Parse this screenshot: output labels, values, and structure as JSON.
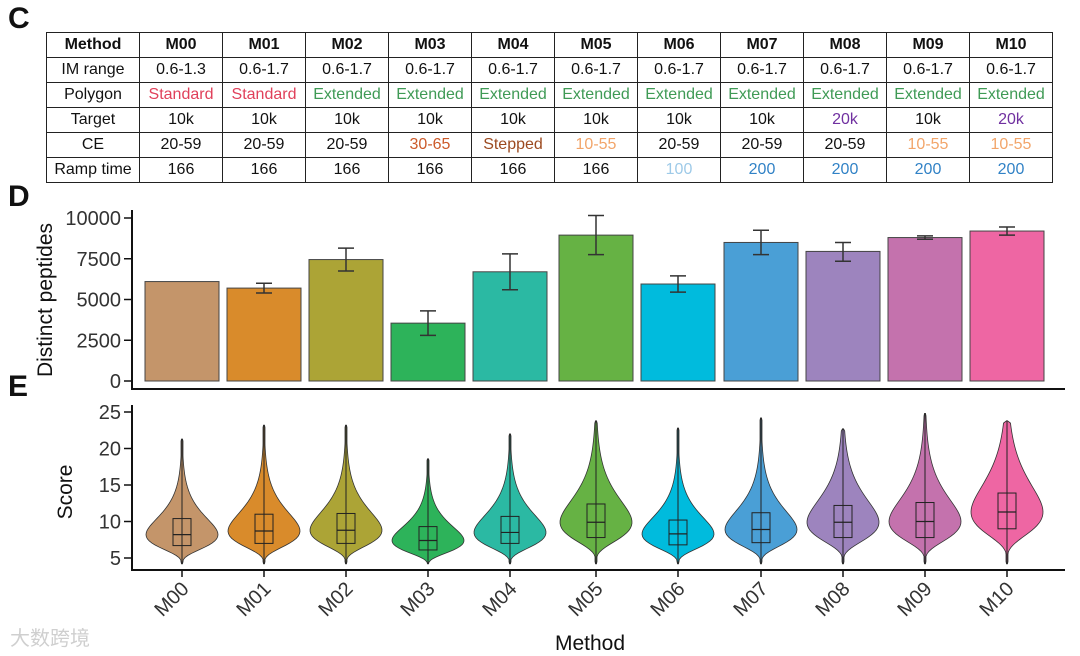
{
  "panels": {
    "table": "C",
    "bar": "D",
    "violin": "E"
  },
  "table": {
    "header": [
      "Method",
      "M00",
      "M01",
      "M02",
      "M03",
      "M04",
      "M05",
      "M06",
      "M07",
      "M08",
      "M09",
      "M10"
    ],
    "rows": [
      {
        "label": "IM range",
        "cells": [
          {
            "t": "0.6-1.3"
          },
          {
            "t": "0.6-1.7"
          },
          {
            "t": "0.6-1.7"
          },
          {
            "t": "0.6-1.7"
          },
          {
            "t": "0.6-1.7"
          },
          {
            "t": "0.6-1.7"
          },
          {
            "t": "0.6-1.7"
          },
          {
            "t": "0.6-1.7"
          },
          {
            "t": "0.6-1.7"
          },
          {
            "t": "0.6-1.7"
          },
          {
            "t": "0.6-1.7"
          }
        ]
      },
      {
        "label": "Polygon",
        "cells": [
          {
            "t": "Standard",
            "c": "#e0405a"
          },
          {
            "t": "Standard",
            "c": "#e0405a"
          },
          {
            "t": "Extended",
            "c": "#3f9a55"
          },
          {
            "t": "Extended",
            "c": "#3f9a55"
          },
          {
            "t": "Extended",
            "c": "#3f9a55"
          },
          {
            "t": "Extended",
            "c": "#3f9a55"
          },
          {
            "t": "Extended",
            "c": "#3f9a55"
          },
          {
            "t": "Extended",
            "c": "#3f9a55"
          },
          {
            "t": "Extended",
            "c": "#3f9a55"
          },
          {
            "t": "Extended",
            "c": "#3f9a55"
          },
          {
            "t": "Extended",
            "c": "#3f9a55"
          }
        ]
      },
      {
        "label": "Target",
        "cells": [
          {
            "t": "10k"
          },
          {
            "t": "10k"
          },
          {
            "t": "10k"
          },
          {
            "t": "10k"
          },
          {
            "t": "10k"
          },
          {
            "t": "10k"
          },
          {
            "t": "10k"
          },
          {
            "t": "10k"
          },
          {
            "t": "20k",
            "c": "#7030a0"
          },
          {
            "t": "10k"
          },
          {
            "t": "20k",
            "c": "#7030a0"
          }
        ]
      },
      {
        "label": "CE",
        "cells": [
          {
            "t": "20-59"
          },
          {
            "t": "20-59"
          },
          {
            "t": "20-59"
          },
          {
            "t": "30-65",
            "c": "#cc5a2a"
          },
          {
            "t": "Stepped",
            "c": "#9c4a20"
          },
          {
            "t": "10-55",
            "c": "#f2a56a"
          },
          {
            "t": "20-59"
          },
          {
            "t": "20-59"
          },
          {
            "t": "20-59"
          },
          {
            "t": "10-55",
            "c": "#f2a56a"
          },
          {
            "t": "10-55",
            "c": "#f2a56a"
          }
        ]
      },
      {
        "label": "Ramp time",
        "cells": [
          {
            "t": "166"
          },
          {
            "t": "166"
          },
          {
            "t": "166"
          },
          {
            "t": "166"
          },
          {
            "t": "166"
          },
          {
            "t": "166"
          },
          {
            "t": "100",
            "c": "#9ecae8"
          },
          {
            "t": "200",
            "c": "#3182c6"
          },
          {
            "t": "200",
            "c": "#3182c6"
          },
          {
            "t": "200",
            "c": "#3182c6"
          },
          {
            "t": "200",
            "c": "#3182c6"
          }
        ]
      }
    ]
  },
  "chart_data": [
    {
      "type": "bar",
      "categories": [
        "M00",
        "M01",
        "M02",
        "M03",
        "M04",
        "M05",
        "M06",
        "M07",
        "M08",
        "M09",
        "M10"
      ],
      "values": [
        6100,
        5700,
        7450,
        3550,
        6700,
        8950,
        5950,
        8500,
        7950,
        8800,
        9200
      ],
      "error_low": [
        null,
        5400,
        6750,
        2800,
        5600,
        7750,
        5450,
        7750,
        7350,
        8700,
        8950
      ],
      "error_high": [
        null,
        6000,
        8150,
        4300,
        7800,
        10150,
        6450,
        9250,
        8500,
        8900,
        9450
      ],
      "colors": [
        "#c4956a",
        "#d98b2b",
        "#aca436",
        "#2db35a",
        "#2bb9a3",
        "#66b244",
        "#00bbdd",
        "#4a9fd6",
        "#9d84be",
        "#c472ad",
        "#ee66a3"
      ],
      "ylabel": "Distinct peptides",
      "yticks": [
        "0",
        "2500",
        "5000",
        "7500",
        "10000"
      ],
      "ylim": [
        0,
        10000
      ]
    },
    {
      "type": "violin",
      "categories": [
        "M00",
        "M01",
        "M02",
        "M03",
        "M04",
        "M05",
        "M06",
        "M07",
        "M08",
        "M09",
        "M10"
      ],
      "median": [
        8.2,
        8.7,
        8.8,
        7.4,
        8.5,
        9.9,
        8.3,
        8.9,
        9.9,
        10.0,
        11.3
      ],
      "q1": [
        6.7,
        7.0,
        7.0,
        6.1,
        7.0,
        7.8,
        6.8,
        7.1,
        7.8,
        7.8,
        9.0
      ],
      "q3": [
        10.4,
        11.0,
        11.1,
        9.3,
        10.7,
        12.4,
        10.2,
        11.2,
        12.2,
        12.6,
        13.9
      ],
      "min": [
        4.2,
        4.2,
        4.2,
        4.2,
        4.2,
        4.2,
        4.2,
        4.2,
        4.2,
        4.2,
        4.2
      ],
      "max": [
        21.3,
        23.2,
        23.2,
        18.6,
        22.0,
        23.8,
        22.8,
        24.2,
        22.7,
        24.8,
        23.8
      ],
      "ylabel": "Score",
      "xlabel": "Method",
      "yticks": [
        "5",
        "10",
        "15",
        "20",
        "25"
      ],
      "ylim": [
        4,
        25
      ]
    }
  ],
  "watermark": "大数跨境"
}
